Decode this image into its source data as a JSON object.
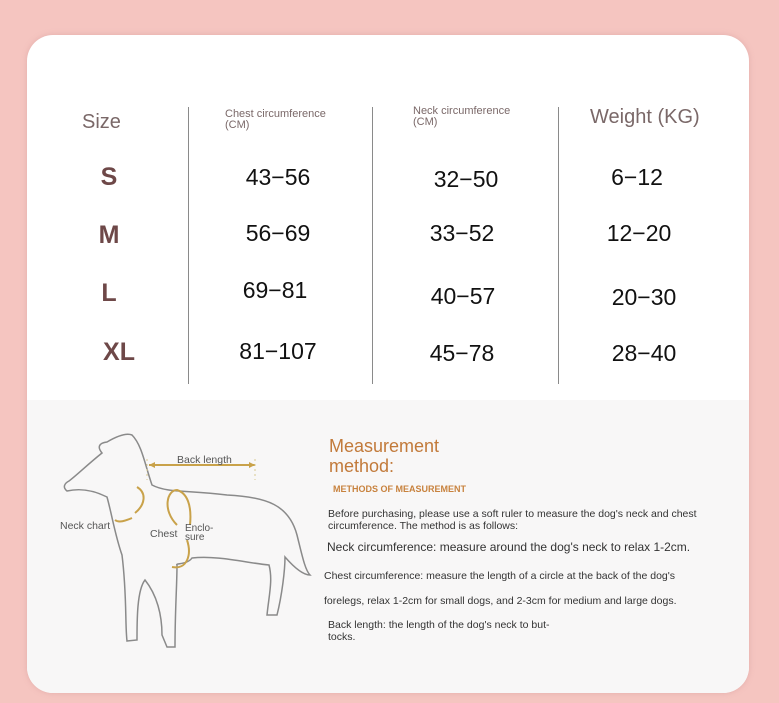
{
  "table": {
    "headers": [
      "Size",
      "Chest circumference (CM)",
      "Neck circumference (CM)",
      "Weight (KG)"
    ],
    "rows": [
      {
        "size": "S",
        "chest": "43−56",
        "neck": "32−50",
        "weight": "6−12"
      },
      {
        "size": "M",
        "chest": "56−69",
        "neck": "33−52",
        "weight": "12−20"
      },
      {
        "size": "L",
        "chest": "69−81",
        "neck": "40−57",
        "weight": "20−30"
      },
      {
        "size": "XL",
        "chest": "81−107",
        "neck": "45−78",
        "weight": "28−40"
      }
    ]
  },
  "diagram": {
    "back_length": "Back length",
    "neck_chart": "Neck chart",
    "chest": "Chest",
    "enclosure": "Enclo-\nsure"
  },
  "method": {
    "title": "Measurement method:",
    "subtitle": "METHODS OF MEASUREMENT",
    "intro": "Before purchasing, please use a soft ruler to measure the dog's neck and chest circumference. The method is as follows:",
    "neck": "Neck circumference: measure around the dog's neck to relax 1-2cm.",
    "chest_1": "Chest circumference: measure the length of a circle at the back of the dog's",
    "chest_2": "forelegs, relax 1-2cm for small dogs, and 2-3cm for medium and large dogs.",
    "back": "Back length: the length of the dog's neck to but-\ntocks."
  },
  "colors": {
    "background": "#f5c5c0",
    "accent": "#c27a3a",
    "size_text": "#6e4848"
  }
}
